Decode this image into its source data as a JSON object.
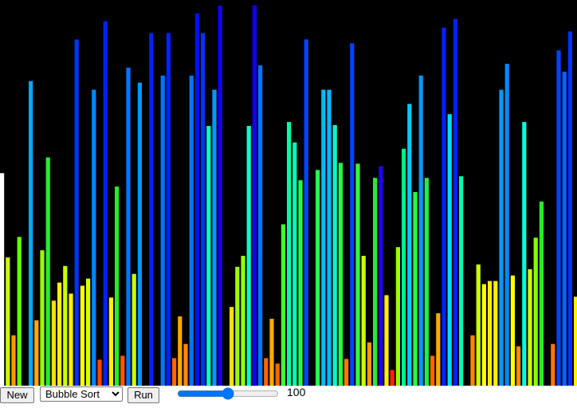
{
  "visualizer": {
    "max_value": 490,
    "bars": [
      {
        "value": 270,
        "color": "#ffffff"
      },
      {
        "value": 163,
        "color": "#ccff00"
      },
      {
        "value": 64,
        "color": "#ff9900"
      },
      {
        "value": 189,
        "color": "#66ff00"
      },
      {
        "value": 0,
        "color": "#000000"
      },
      {
        "value": 387,
        "color": "#00aaff"
      },
      {
        "value": 83,
        "color": "#ffaa00"
      },
      {
        "value": 172,
        "color": "#99ff00"
      },
      {
        "value": 290,
        "color": "#22ee33"
      },
      {
        "value": 108,
        "color": "#ffdd00"
      },
      {
        "value": 131,
        "color": "#ffee00"
      },
      {
        "value": 152,
        "color": "#ccff00"
      },
      {
        "value": 117,
        "color": "#ffee00"
      },
      {
        "value": 440,
        "color": "#0033ff"
      },
      {
        "value": 127,
        "color": "#ffff00"
      },
      {
        "value": 136,
        "color": "#ddff00"
      },
      {
        "value": 376,
        "color": "#0088ff"
      },
      {
        "value": 33,
        "color": "#ff4400"
      },
      {
        "value": 463,
        "color": "#0022ff"
      },
      {
        "value": 112,
        "color": "#ffee00"
      },
      {
        "value": 253,
        "color": "#22ee22"
      },
      {
        "value": 38,
        "color": "#ff5500"
      },
      {
        "value": 404,
        "color": "#0077ff"
      },
      {
        "value": 142,
        "color": "#ccff00"
      },
      {
        "value": 385,
        "color": "#0099ff"
      },
      {
        "value": 0,
        "color": "#000000"
      },
      {
        "value": 448,
        "color": "#0022ff"
      },
      {
        "value": 0,
        "color": "#000000"
      },
      {
        "value": 394,
        "color": "#0077ff"
      },
      {
        "value": 448,
        "color": "#0022ff"
      },
      {
        "value": 35,
        "color": "#ff6600"
      },
      {
        "value": 88,
        "color": "#ffaa00"
      },
      {
        "value": 53,
        "color": "#ff8800"
      },
      {
        "value": 394,
        "color": "#0077ff"
      },
      {
        "value": 473,
        "color": "#0011ff"
      },
      {
        "value": 448,
        "color": "#0033ff"
      },
      {
        "value": 330,
        "color": "#00ffcc"
      },
      {
        "value": 376,
        "color": "#0099ff"
      },
      {
        "value": 483,
        "color": "#1100ff"
      },
      {
        "value": 0,
        "color": "#000000"
      },
      {
        "value": 100,
        "color": "#ffdd00"
      },
      {
        "value": 151,
        "color": "#99ff00"
      },
      {
        "value": 165,
        "color": "#99ff00"
      },
      {
        "value": 330,
        "color": "#00ffcc"
      },
      {
        "value": 483,
        "color": "#1100ff"
      },
      {
        "value": 407,
        "color": "#0077ff"
      },
      {
        "value": 35,
        "color": "#ff6600"
      },
      {
        "value": 85,
        "color": "#ffaa00"
      },
      {
        "value": 28,
        "color": "#ff6600"
      },
      {
        "value": 205,
        "color": "#44ff22"
      },
      {
        "value": 335,
        "color": "#00ffaa"
      },
      {
        "value": 309,
        "color": "#00ffbb"
      },
      {
        "value": 261,
        "color": "#22ff44"
      },
      {
        "value": 440,
        "color": "#0044ff"
      },
      {
        "value": 0,
        "color": "#000000"
      },
      {
        "value": 274,
        "color": "#22ff55"
      },
      {
        "value": 376,
        "color": "#00bbff"
      },
      {
        "value": 376,
        "color": "#00bbff"
      },
      {
        "value": 331,
        "color": "#00ffcc"
      },
      {
        "value": 283,
        "color": "#22ff44"
      },
      {
        "value": 34,
        "color": "#ff7700"
      },
      {
        "value": 435,
        "color": "#0044ff"
      },
      {
        "value": 282,
        "color": "#33ff33"
      },
      {
        "value": 165,
        "color": "#ccff00"
      },
      {
        "value": 55,
        "color": "#ff9900"
      },
      {
        "value": 264,
        "color": "#22ee33"
      },
      {
        "value": 279,
        "color": "#2200ff"
      },
      {
        "value": 115,
        "color": "#ffee00"
      },
      {
        "value": 20,
        "color": "#ff2200"
      },
      {
        "value": 176,
        "color": "#99ff00"
      },
      {
        "value": 301,
        "color": "#00ee88"
      },
      {
        "value": 358,
        "color": "#00ccff"
      },
      {
        "value": 246,
        "color": "#22ff44"
      },
      {
        "value": 394,
        "color": "#0099ff"
      },
      {
        "value": 264,
        "color": "#22ee44"
      },
      {
        "value": 38,
        "color": "#ff6600"
      },
      {
        "value": 92,
        "color": "#ffaa00"
      },
      {
        "value": 455,
        "color": "#0022ff"
      },
      {
        "value": 345,
        "color": "#00ddff"
      },
      {
        "value": 466,
        "color": "#0022ff"
      },
      {
        "value": 266,
        "color": "#00ffaa"
      },
      {
        "value": 0,
        "color": "#000000"
      },
      {
        "value": 64,
        "color": "#ff8800"
      },
      {
        "value": 154,
        "color": "#ccff00"
      },
      {
        "value": 129,
        "color": "#ffff00"
      },
      {
        "value": 133,
        "color": "#ffee00"
      },
      {
        "value": 133,
        "color": "#ffee00"
      },
      {
        "value": 376,
        "color": "#0099ff"
      },
      {
        "value": 409,
        "color": "#0088ff"
      },
      {
        "value": 140,
        "color": "#ffff00"
      },
      {
        "value": 50,
        "color": "#ff8800"
      },
      {
        "value": 335,
        "color": "#00ffdd"
      },
      {
        "value": 148,
        "color": "#ccff00"
      },
      {
        "value": 188,
        "color": "#88ff00"
      },
      {
        "value": 234,
        "color": "#22ee22"
      },
      {
        "value": 0,
        "color": "#000000"
      },
      {
        "value": 53,
        "color": "#ff7700"
      },
      {
        "value": 426,
        "color": "#0044ff"
      },
      {
        "value": 399,
        "color": "#0066ff"
      },
      {
        "value": 450,
        "color": "#0033ff"
      },
      {
        "value": 113,
        "color": "#ffee00"
      },
      {
        "value": 224,
        "color": "#33ff33"
      }
    ]
  },
  "controls": {
    "new_label": "New",
    "algorithm_selected": "Bubble Sort",
    "run_label": "Run",
    "speed_value": 100,
    "speed_min": 0,
    "speed_max": 200,
    "speed_text": "100"
  }
}
